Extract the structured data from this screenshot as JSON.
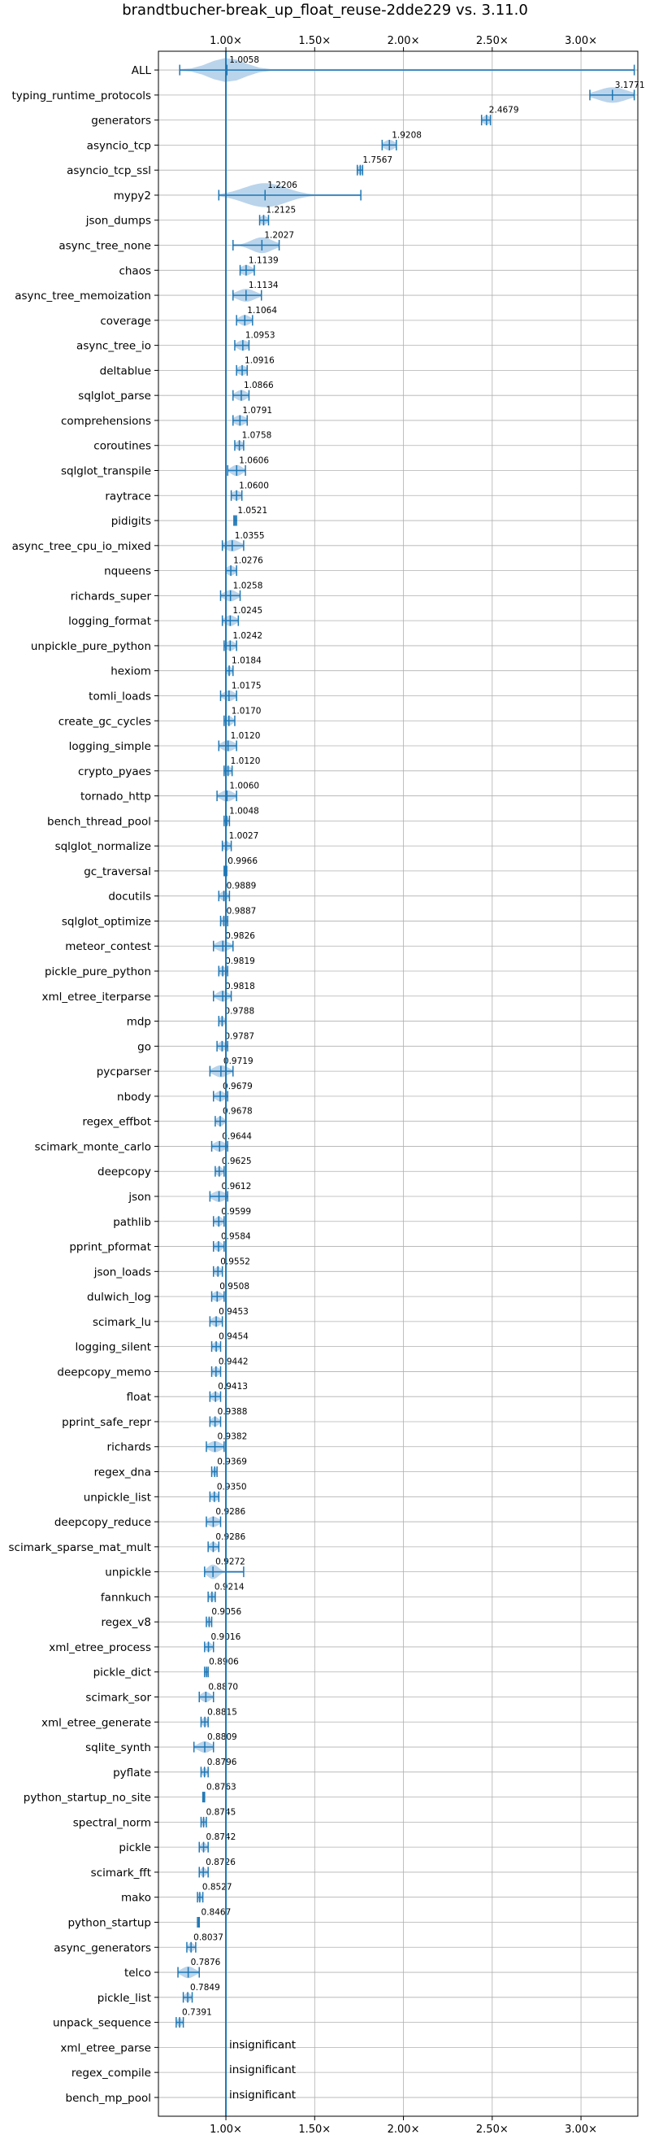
{
  "chart_data": {
    "type": "violin",
    "title": "brandtbucher-break_up_float_reuse-2dde229 vs. 3.11.0",
    "xlabel": "",
    "ylabel": "",
    "xlim": [
      0.62,
      3.32
    ],
    "xticks": [
      1.0,
      1.5,
      2.0,
      2.5,
      3.0
    ],
    "xtick_labels": [
      "1.00×",
      "1.50×",
      "2.00×",
      "2.50×",
      "3.00×"
    ],
    "reference_line": 1.0,
    "grid": true,
    "color": "#1f77b4",
    "fill_color": "#aecde8",
    "benchmarks": [
      {
        "name": "ALL",
        "value": 1.0058,
        "label": "1.0058",
        "min": 0.74,
        "max": 3.3,
        "spread": 0.1
      },
      {
        "name": "typing_runtime_protocols",
        "value": 3.1771,
        "label": "3.1771",
        "min": 3.05,
        "max": 3.3,
        "spread": 0.08
      },
      {
        "name": "generators",
        "value": 2.4679,
        "label": "2.4679",
        "min": 2.44,
        "max": 2.49,
        "spread": 0.02
      },
      {
        "name": "asyncio_tcp",
        "value": 1.9208,
        "label": "1.9208",
        "min": 1.88,
        "max": 1.96,
        "spread": 0.03
      },
      {
        "name": "asyncio_tcp_ssl",
        "value": 1.7567,
        "label": "1.7567",
        "min": 1.74,
        "max": 1.77,
        "spread": 0.015
      },
      {
        "name": "mypy2",
        "value": 1.2206,
        "label": "1.2206",
        "min": 0.96,
        "max": 1.76,
        "spread": 0.12
      },
      {
        "name": "json_dumps",
        "value": 1.2125,
        "label": "1.2125",
        "min": 1.19,
        "max": 1.24,
        "spread": 0.02
      },
      {
        "name": "async_tree_none",
        "value": 1.2027,
        "label": "1.2027",
        "min": 1.04,
        "max": 1.3,
        "spread": 0.06
      },
      {
        "name": "chaos",
        "value": 1.1139,
        "label": "1.1139",
        "min": 1.08,
        "max": 1.16,
        "spread": 0.03
      },
      {
        "name": "async_tree_memoization",
        "value": 1.1134,
        "label": "1.1134",
        "min": 1.04,
        "max": 1.2,
        "spread": 0.05
      },
      {
        "name": "coverage",
        "value": 1.1064,
        "label": "1.1064",
        "min": 1.06,
        "max": 1.15,
        "spread": 0.03
      },
      {
        "name": "async_tree_io",
        "value": 1.0953,
        "label": "1.0953",
        "min": 1.05,
        "max": 1.13,
        "spread": 0.03
      },
      {
        "name": "deltablue",
        "value": 1.0916,
        "label": "1.0916",
        "min": 1.06,
        "max": 1.12,
        "spread": 0.025
      },
      {
        "name": "sqlglot_parse",
        "value": 1.0866,
        "label": "1.0866",
        "min": 1.04,
        "max": 1.13,
        "spread": 0.03
      },
      {
        "name": "comprehensions",
        "value": 1.0791,
        "label": "1.0791",
        "min": 1.04,
        "max": 1.12,
        "spread": 0.03
      },
      {
        "name": "coroutines",
        "value": 1.0758,
        "label": "1.0758",
        "min": 1.05,
        "max": 1.1,
        "spread": 0.02
      },
      {
        "name": "sqlglot_transpile",
        "value": 1.0606,
        "label": "1.0606",
        "min": 1.01,
        "max": 1.11,
        "spread": 0.03
      },
      {
        "name": "raytrace",
        "value": 1.06,
        "label": "1.0600",
        "min": 1.03,
        "max": 1.09,
        "spread": 0.025
      },
      {
        "name": "pidigits",
        "value": 1.0521,
        "label": "1.0521",
        "min": 1.045,
        "max": 1.06,
        "spread": 0.006
      },
      {
        "name": "async_tree_cpu_io_mixed",
        "value": 1.0355,
        "label": "1.0355",
        "min": 0.98,
        "max": 1.1,
        "spread": 0.04
      },
      {
        "name": "nqueens",
        "value": 1.0276,
        "label": "1.0276",
        "min": 1.0,
        "max": 1.06,
        "spread": 0.025
      },
      {
        "name": "richards_super",
        "value": 1.0258,
        "label": "1.0258",
        "min": 0.97,
        "max": 1.08,
        "spread": 0.035
      },
      {
        "name": "logging_format",
        "value": 1.0245,
        "label": "1.0245",
        "min": 0.98,
        "max": 1.07,
        "spread": 0.03
      },
      {
        "name": "unpickle_pure_python",
        "value": 1.0242,
        "label": "1.0242",
        "min": 0.99,
        "max": 1.06,
        "spread": 0.025
      },
      {
        "name": "hexiom",
        "value": 1.0184,
        "label": "1.0184",
        "min": 1.0,
        "max": 1.04,
        "spread": 0.015
      },
      {
        "name": "tomli_loads",
        "value": 1.0175,
        "label": "1.0175",
        "min": 0.97,
        "max": 1.06,
        "spread": 0.03
      },
      {
        "name": "create_gc_cycles",
        "value": 1.017,
        "label": "1.0170",
        "min": 0.99,
        "max": 1.05,
        "spread": 0.02
      },
      {
        "name": "logging_simple",
        "value": 1.012,
        "label": "1.0120",
        "min": 0.96,
        "max": 1.06,
        "spread": 0.035
      },
      {
        "name": "crypto_pyaes",
        "value": 1.012,
        "label": "1.0120",
        "min": 0.99,
        "max": 1.035,
        "spread": 0.018
      },
      {
        "name": "tornado_http",
        "value": 1.006,
        "label": "1.0060",
        "min": 0.95,
        "max": 1.06,
        "spread": 0.035
      },
      {
        "name": "bench_thread_pool",
        "value": 1.0048,
        "label": "1.0048",
        "min": 0.99,
        "max": 1.02,
        "spread": 0.01
      },
      {
        "name": "sqlglot_normalize",
        "value": 1.0027,
        "label": "1.0027",
        "min": 0.98,
        "max": 1.03,
        "spread": 0.02
      },
      {
        "name": "gc_traversal",
        "value": 0.9966,
        "label": "0.9966",
        "min": 0.99,
        "max": 1.005,
        "spread": 0.005
      },
      {
        "name": "docutils",
        "value": 0.9889,
        "label": "0.9889",
        "min": 0.96,
        "max": 1.02,
        "spread": 0.02
      },
      {
        "name": "sqlglot_optimize",
        "value": 0.9887,
        "label": "0.9887",
        "min": 0.97,
        "max": 1.01,
        "spread": 0.015
      },
      {
        "name": "meteor_contest",
        "value": 0.9826,
        "label": "0.9826",
        "min": 0.93,
        "max": 1.04,
        "spread": 0.035
      },
      {
        "name": "pickle_pure_python",
        "value": 0.9819,
        "label": "0.9819",
        "min": 0.96,
        "max": 1.01,
        "spread": 0.018
      },
      {
        "name": "xml_etree_iterparse",
        "value": 0.9818,
        "label": "0.9818",
        "min": 0.93,
        "max": 1.03,
        "spread": 0.03
      },
      {
        "name": "mdp",
        "value": 0.9788,
        "label": "0.9788",
        "min": 0.96,
        "max": 1.0,
        "spread": 0.015
      },
      {
        "name": "go",
        "value": 0.9787,
        "label": "0.9787",
        "min": 0.95,
        "max": 1.01,
        "spread": 0.02
      },
      {
        "name": "pycparser",
        "value": 0.9719,
        "label": "0.9719",
        "min": 0.91,
        "max": 1.04,
        "spread": 0.04
      },
      {
        "name": "nbody",
        "value": 0.9679,
        "label": "0.9679",
        "min": 0.93,
        "max": 1.01,
        "spread": 0.025
      },
      {
        "name": "regex_effbot",
        "value": 0.9678,
        "label": "0.9678",
        "min": 0.94,
        "max": 1.0,
        "spread": 0.02
      },
      {
        "name": "scimark_monte_carlo",
        "value": 0.9644,
        "label": "0.9644",
        "min": 0.92,
        "max": 1.01,
        "spread": 0.03
      },
      {
        "name": "deepcopy",
        "value": 0.9625,
        "label": "0.9625",
        "min": 0.94,
        "max": 0.99,
        "spread": 0.018
      },
      {
        "name": "json",
        "value": 0.9612,
        "label": "0.9612",
        "min": 0.91,
        "max": 1.01,
        "spread": 0.035
      },
      {
        "name": "pathlib",
        "value": 0.9599,
        "label": "0.9599",
        "min": 0.93,
        "max": 0.99,
        "spread": 0.02
      },
      {
        "name": "pprint_pformat",
        "value": 0.9584,
        "label": "0.9584",
        "min": 0.93,
        "max": 0.99,
        "spread": 0.02
      },
      {
        "name": "json_loads",
        "value": 0.9552,
        "label": "0.9552",
        "min": 0.93,
        "max": 0.98,
        "spread": 0.018
      },
      {
        "name": "dulwich_log",
        "value": 0.9508,
        "label": "0.9508",
        "min": 0.92,
        "max": 0.99,
        "spread": 0.025
      },
      {
        "name": "scimark_lu",
        "value": 0.9453,
        "label": "0.9453",
        "min": 0.91,
        "max": 0.98,
        "spread": 0.025
      },
      {
        "name": "logging_silent",
        "value": 0.9454,
        "label": "0.9454",
        "min": 0.92,
        "max": 0.97,
        "spread": 0.018
      },
      {
        "name": "deepcopy_memo",
        "value": 0.9442,
        "label": "0.9442",
        "min": 0.92,
        "max": 0.97,
        "spread": 0.018
      },
      {
        "name": "float",
        "value": 0.9413,
        "label": "0.9413",
        "min": 0.91,
        "max": 0.97,
        "spread": 0.022
      },
      {
        "name": "pprint_safe_repr",
        "value": 0.9388,
        "label": "0.9388",
        "min": 0.91,
        "max": 0.97,
        "spread": 0.02
      },
      {
        "name": "richards",
        "value": 0.9382,
        "label": "0.9382",
        "min": 0.89,
        "max": 0.99,
        "spread": 0.035
      },
      {
        "name": "regex_dna",
        "value": 0.9369,
        "label": "0.9369",
        "min": 0.92,
        "max": 0.95,
        "spread": 0.01
      },
      {
        "name": "unpickle_list",
        "value": 0.935,
        "label": "0.9350",
        "min": 0.91,
        "max": 0.96,
        "spread": 0.02
      },
      {
        "name": "deepcopy_reduce",
        "value": 0.9286,
        "label": "0.9286",
        "min": 0.89,
        "max": 0.97,
        "spread": 0.03
      },
      {
        "name": "scimark_sparse_mat_mult",
        "value": 0.9286,
        "label": "0.9286",
        "min": 0.9,
        "max": 0.96,
        "spread": 0.02
      },
      {
        "name": "unpickle",
        "value": 0.9272,
        "label": "0.9272",
        "min": 0.88,
        "max": 1.1,
        "spread": 0.03
      },
      {
        "name": "fannkuch",
        "value": 0.9214,
        "label": "0.9214",
        "min": 0.9,
        "max": 0.94,
        "spread": 0.015
      },
      {
        "name": "regex_v8",
        "value": 0.9056,
        "label": "0.9056",
        "min": 0.89,
        "max": 0.92,
        "spread": 0.01
      },
      {
        "name": "xml_etree_process",
        "value": 0.9016,
        "label": "0.9016",
        "min": 0.88,
        "max": 0.93,
        "spread": 0.018
      },
      {
        "name": "pickle_dict",
        "value": 0.8906,
        "label": "0.8906",
        "min": 0.88,
        "max": 0.9,
        "spread": 0.008
      },
      {
        "name": "scimark_sor",
        "value": 0.887,
        "label": "0.8870",
        "min": 0.85,
        "max": 0.93,
        "spread": 0.025
      },
      {
        "name": "xml_etree_generate",
        "value": 0.8815,
        "label": "0.8815",
        "min": 0.86,
        "max": 0.9,
        "spread": 0.015
      },
      {
        "name": "sqlite_synth",
        "value": 0.8809,
        "label": "0.8809",
        "min": 0.82,
        "max": 0.93,
        "spread": 0.035
      },
      {
        "name": "pyflate",
        "value": 0.8796,
        "label": "0.8796",
        "min": 0.86,
        "max": 0.9,
        "spread": 0.012
      },
      {
        "name": "python_startup_no_site",
        "value": 0.8763,
        "label": "0.8763",
        "min": 0.87,
        "max": 0.88,
        "spread": 0.004
      },
      {
        "name": "spectral_norm",
        "value": 0.8745,
        "label": "0.8745",
        "min": 0.86,
        "max": 0.89,
        "spread": 0.01
      },
      {
        "name": "pickle",
        "value": 0.8742,
        "label": "0.8742",
        "min": 0.85,
        "max": 0.9,
        "spread": 0.015
      },
      {
        "name": "scimark_fft",
        "value": 0.8726,
        "label": "0.8726",
        "min": 0.85,
        "max": 0.9,
        "spread": 0.015
      },
      {
        "name": "mako",
        "value": 0.8527,
        "label": "0.8527",
        "min": 0.84,
        "max": 0.87,
        "spread": 0.01
      },
      {
        "name": "python_startup",
        "value": 0.8467,
        "label": "0.8467",
        "min": 0.84,
        "max": 0.85,
        "spread": 0.004
      },
      {
        "name": "async_generators",
        "value": 0.8037,
        "label": "0.8037",
        "min": 0.78,
        "max": 0.83,
        "spread": 0.015
      },
      {
        "name": "telco",
        "value": 0.7876,
        "label": "0.7876",
        "min": 0.73,
        "max": 0.85,
        "spread": 0.035
      },
      {
        "name": "pickle_list",
        "value": 0.7849,
        "label": "0.7849",
        "min": 0.76,
        "max": 0.81,
        "spread": 0.015
      },
      {
        "name": "unpack_sequence",
        "value": 0.7391,
        "label": "0.7391",
        "min": 0.72,
        "max": 0.76,
        "spread": 0.012
      },
      {
        "name": "xml_etree_parse",
        "value": null,
        "label": "insignificant"
      },
      {
        "name": "regex_compile",
        "value": null,
        "label": "insignificant"
      },
      {
        "name": "bench_mp_pool",
        "value": null,
        "label": "insignificant"
      }
    ]
  }
}
